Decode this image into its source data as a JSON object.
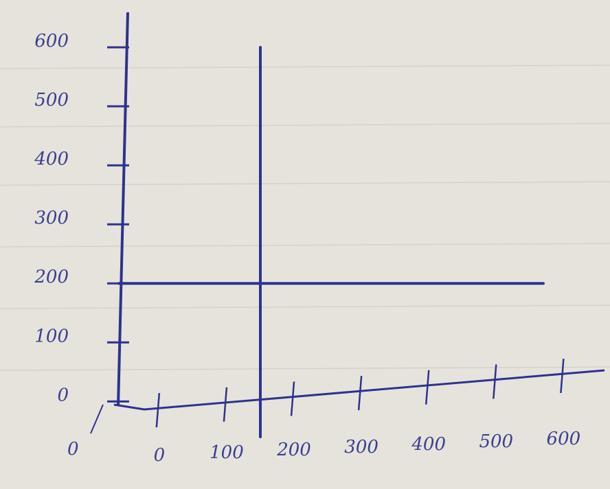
{
  "chart_data": {
    "type": "line",
    "series": [
      {
        "color": "#2d3290",
        "x": [
          -60,
          570
        ],
        "values": [
          200,
          200
        ]
      },
      {
        "color": "#2d3290",
        "x": [
          150,
          150
        ],
        "values": [
          -60,
          600
        ]
      }
    ],
    "xlim": [
      -60,
      620
    ],
    "ylim": [
      -60,
      600
    ],
    "xticks": [
      0,
      100,
      200,
      300,
      400,
      500,
      600
    ],
    "yticks": [
      0,
      100,
      200,
      300,
      400,
      500,
      600
    ],
    "annotations": [
      "0"
    ]
  }
}
